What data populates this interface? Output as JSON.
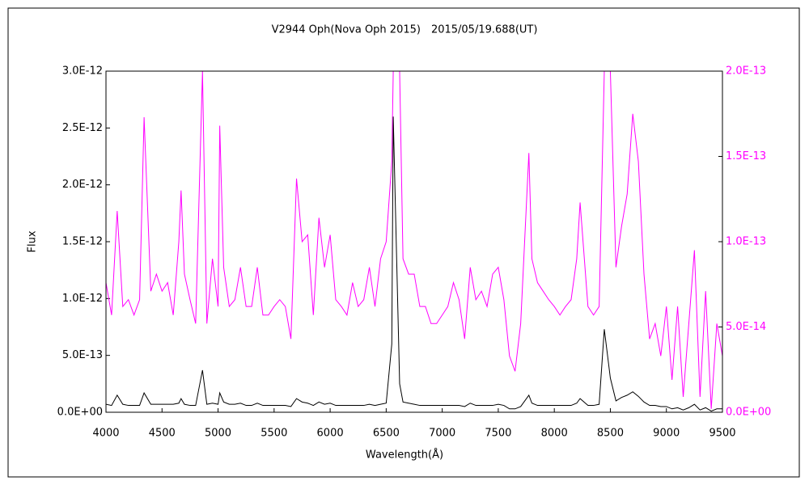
{
  "chart_data": {
    "type": "line",
    "title": "V2944 Oph(Nova Oph 2015)　2015/05/19.688(UT)",
    "x_label": "Wavelength(Å)",
    "y_label": "Flux",
    "xlim": [
      4000,
      9500
    ],
    "xticks": [
      4000,
      4500,
      5000,
      5500,
      6000,
      6500,
      7000,
      7500,
      8000,
      8500,
      9000,
      9500
    ],
    "ylim": [
      0,
      3e-12
    ],
    "yticks": [
      {
        "value": 0,
        "label": "0.0E+00"
      },
      {
        "value": 5e-13,
        "label": "5.0E-13"
      },
      {
        "value": 1e-12,
        "label": "1.0E-12"
      },
      {
        "value": 1.5e-12,
        "label": "1.5E-12"
      },
      {
        "value": 2e-12,
        "label": "2.0E-12"
      },
      {
        "value": 2.5e-12,
        "label": "2.5E-12"
      },
      {
        "value": 3e-12,
        "label": "3.0E-12"
      }
    ],
    "y2lim": [
      0,
      2e-13
    ],
    "y2ticks": [
      {
        "value": 0,
        "label": "0.0E+00"
      },
      {
        "value": 5e-14,
        "label": "5.0E-14"
      },
      {
        "value": 1e-13,
        "label": "1.0E-13"
      },
      {
        "value": 1.5e-13,
        "label": "1.5E-13"
      },
      {
        "value": 2e-13,
        "label": "2.0E-13"
      }
    ],
    "x": [
      4000,
      4050,
      4100,
      4150,
      4200,
      4250,
      4300,
      4340,
      4400,
      4450,
      4500,
      4550,
      4600,
      4650,
      4670,
      4700,
      4750,
      4800,
      4861,
      4900,
      4950,
      5000,
      5015,
      5050,
      5100,
      5150,
      5200,
      5250,
      5300,
      5350,
      5400,
      5450,
      5500,
      5550,
      5600,
      5650,
      5700,
      5750,
      5800,
      5850,
      5900,
      5950,
      6000,
      6050,
      6100,
      6150,
      6200,
      6250,
      6300,
      6350,
      6400,
      6450,
      6500,
      6550,
      6563,
      6620,
      6650,
      6700,
      6750,
      6800,
      6850,
      6900,
      6950,
      7000,
      7050,
      7100,
      7150,
      7200,
      7250,
      7300,
      7350,
      7400,
      7450,
      7500,
      7550,
      7600,
      7650,
      7700,
      7773,
      7800,
      7850,
      7900,
      7950,
      8000,
      8050,
      8100,
      8150,
      8200,
      8230,
      8300,
      8350,
      8400,
      8446,
      8500,
      8550,
      8600,
      8650,
      8700,
      8750,
      8800,
      8850,
      8900,
      8950,
      9000,
      9050,
      9100,
      9150,
      9200,
      9250,
      9300,
      9350,
      9400,
      9450,
      9500
    ],
    "series": [
      {
        "color": "#ff00ff",
        "axis": "y2",
        "values": [
          7.6e-14,
          5.7e-14,
          1.18e-13,
          6.2e-14,
          6.6e-14,
          5.7e-14,
          6.6e-14,
          1.73e-13,
          7.1e-14,
          8.1e-14,
          7.1e-14,
          7.6e-14,
          5.7e-14,
          1e-13,
          1.3e-13,
          8.1e-14,
          6.6e-14,
          5.2e-14,
          2e-13,
          5.2e-14,
          9e-14,
          6.2e-14,
          1.68e-13,
          8.5e-14,
          6.2e-14,
          6.6e-14,
          8.5e-14,
          6.2e-14,
          6.2e-14,
          8.5e-14,
          5.7e-14,
          5.7e-14,
          6.2e-14,
          6.6e-14,
          6.2e-14,
          4.3e-14,
          1.37e-13,
          1e-13,
          1.04e-13,
          5.7e-14,
          1.14e-13,
          8.5e-14,
          1.04e-13,
          6.6e-14,
          6.2e-14,
          5.7e-14,
          7.6e-14,
          6.2e-14,
          6.6e-14,
          8.5e-14,
          6.2e-14,
          9e-14,
          1e-13,
          1.47e-13,
          2e-13,
          2e-13,
          9e-14,
          8.1e-14,
          8.1e-14,
          6.2e-14,
          6.2e-14,
          5.2e-14,
          5.2e-14,
          5.7e-14,
          6.2e-14,
          7.6e-14,
          6.6e-14,
          4.3e-14,
          8.5e-14,
          6.6e-14,
          7.1e-14,
          6.2e-14,
          8.1e-14,
          8.5e-14,
          6.6e-14,
          3.3e-14,
          2.4e-14,
          5.2e-14,
          1.52e-13,
          9e-14,
          7.6e-14,
          7.1e-14,
          6.6e-14,
          6.2e-14,
          5.7e-14,
          6.2e-14,
          6.6e-14,
          9e-14,
          1.23e-13,
          6.2e-14,
          5.7e-14,
          6.2e-14,
          2e-13,
          2e-13,
          8.5e-14,
          1.09e-13,
          1.28e-13,
          1.75e-13,
          1.47e-13,
          8.1e-14,
          4.3e-14,
          5.2e-14,
          3.3e-14,
          6.2e-14,
          1.9e-14,
          6.2e-14,
          9e-15,
          5.2e-14,
          9.5e-14,
          9e-15,
          7.1e-14,
          2e-15,
          5.2e-14,
          3.3e-14
        ]
      },
      {
        "color": "#000000",
        "values": [
          7e-14,
          6e-14,
          1.5e-13,
          7e-14,
          6e-14,
          6e-14,
          6e-14,
          1.7e-13,
          7e-14,
          7e-14,
          7e-14,
          7e-14,
          7e-14,
          8e-14,
          1.2e-13,
          7e-14,
          6e-14,
          6e-14,
          3.7e-13,
          7e-14,
          8e-14,
          7e-14,
          1.7e-13,
          9e-14,
          7e-14,
          7e-14,
          8e-14,
          6e-14,
          6e-14,
          8e-14,
          6e-14,
          6e-14,
          6e-14,
          6e-14,
          6e-14,
          5e-14,
          1.2e-13,
          9e-14,
          8e-14,
          6e-14,
          9e-14,
          7e-14,
          8e-14,
          6e-14,
          6e-14,
          6e-14,
          6e-14,
          6e-14,
          6e-14,
          7e-14,
          6e-14,
          7e-14,
          8e-14,
          6e-13,
          2.6e-12,
          2.5e-13,
          9e-14,
          8e-14,
          7e-14,
          6e-14,
          6e-14,
          6e-14,
          6e-14,
          6e-14,
          6e-14,
          6e-14,
          6e-14,
          5e-14,
          8e-14,
          6e-14,
          6e-14,
          6e-14,
          6e-14,
          7e-14,
          6e-14,
          3e-14,
          3e-14,
          5e-14,
          1.5e-13,
          8e-14,
          6e-14,
          6e-14,
          6e-14,
          6e-14,
          6e-14,
          6e-14,
          6e-14,
          8e-14,
          1.2e-13,
          6e-14,
          6e-14,
          7e-14,
          7.3e-13,
          3e-13,
          1e-13,
          1.3e-13,
          1.5e-13,
          1.8e-13,
          1.4e-13,
          9e-14,
          6e-14,
          6e-14,
          5e-14,
          5e-14,
          3e-14,
          4e-14,
          2e-14,
          4e-14,
          7e-14,
          2e-14,
          4e-14,
          1e-14,
          3e-14,
          3e-14
        ]
      }
    ]
  }
}
